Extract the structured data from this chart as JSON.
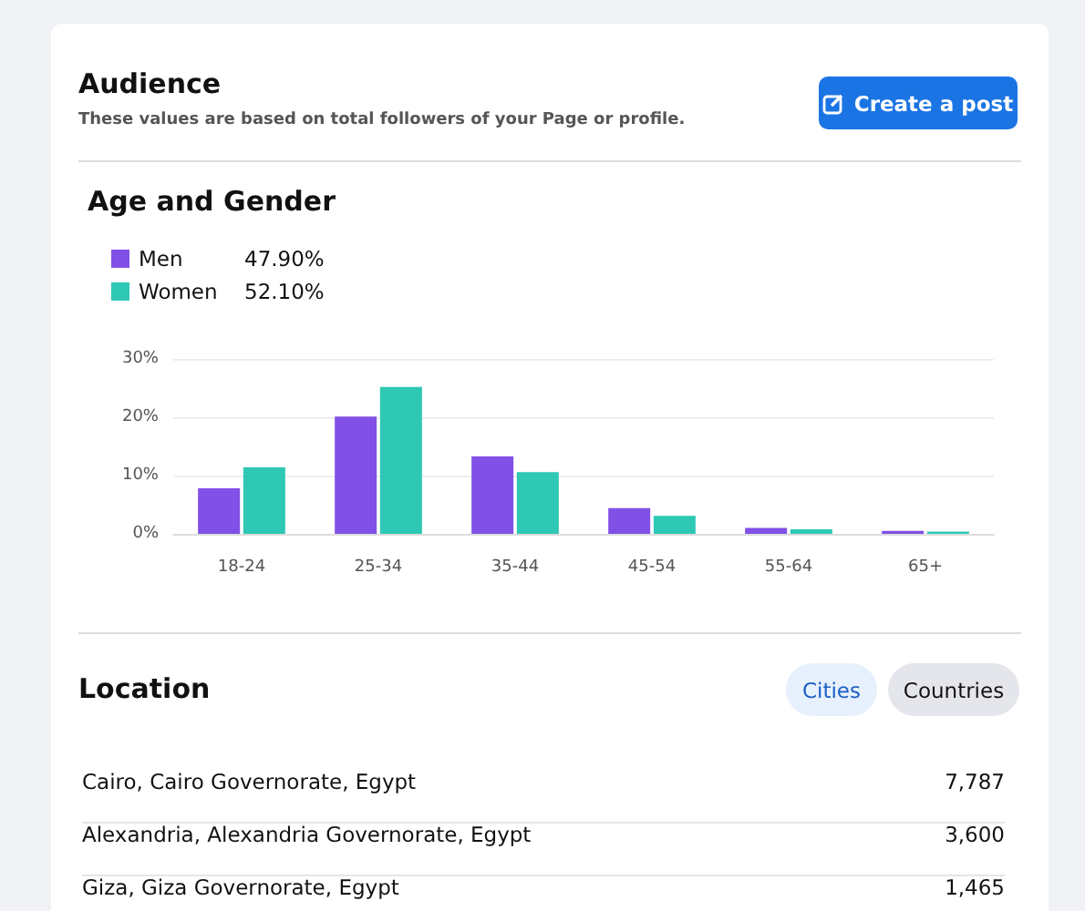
{
  "chart_data": [
    {
      "type": "other",
      "title": "Audience",
      "subtitle": "These values are based on total followers of your Page or profile.",
      "annotations": [
        "Create a post"
      ]
    },
    {
      "type": "bar",
      "title": "Age and Gender",
      "categories": [
        "18-24",
        "25-34",
        "35-44",
        "45-54",
        "55-64",
        "65+"
      ],
      "series": [
        {
          "name": "Men",
          "color": "#8150e6",
          "values": [
            7.8,
            20.1,
            13.3,
            4.4,
            1.0,
            0.5
          ]
        },
        {
          "name": "Women",
          "color": "#2ec8b4",
          "values": [
            11.4,
            25.2,
            10.6,
            3.1,
            0.8,
            0.4
          ]
        }
      ],
      "annotations": [
        "47.90%",
        "52.10%"
      ],
      "ylim": [
        0,
        30
      ],
      "yticks": [
        {
          "value": 0,
          "label": "0%"
        },
        {
          "value": 10,
          "label": "10%"
        },
        {
          "value": 20,
          "label": "20%"
        },
        {
          "value": 30,
          "label": "30%"
        }
      ],
      "grid": "y",
      "legend": "top left"
    },
    {
      "type": "other",
      "title": "Location",
      "annotations": [
        "Cities",
        "Countries",
        "Cairo, Cairo Governorate, Egypt",
        "7,787",
        "Alexandria, Alexandria Governorate, Egypt",
        "3,600",
        "Giza, Giza Governorate, Egypt",
        "1,465"
      ]
    }
  ]
}
